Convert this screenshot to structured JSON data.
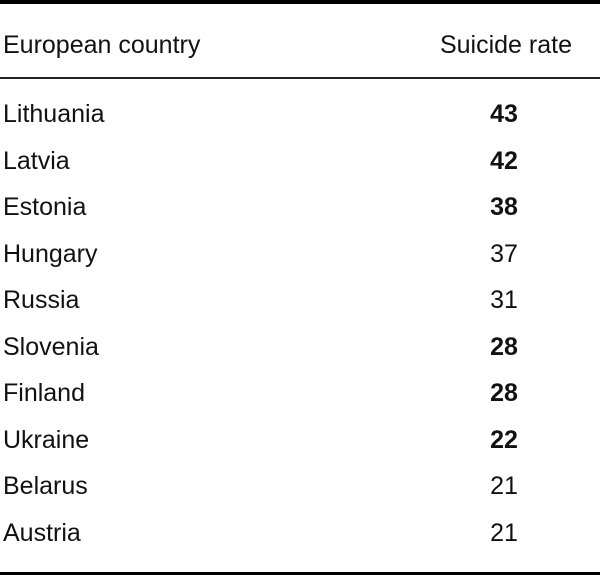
{
  "table": {
    "headers": {
      "country": "European country",
      "rate": "Suicide rate"
    },
    "rows": [
      {
        "country": "Lithuania",
        "rate": "43"
      },
      {
        "country": "Latvia",
        "rate": "42"
      },
      {
        "country": "Estonia",
        "rate": "38"
      },
      {
        "country": "Hungary",
        "rate": "37"
      },
      {
        "country": "Russia",
        "rate": "31"
      },
      {
        "country": "Slovenia",
        "rate": "28"
      },
      {
        "country": "Finland",
        "rate": "28"
      },
      {
        "country": "Ukraine",
        "rate": "22"
      },
      {
        "country": "Belarus",
        "rate": "21"
      },
      {
        "country": "Austria",
        "rate": "21"
      }
    ]
  }
}
